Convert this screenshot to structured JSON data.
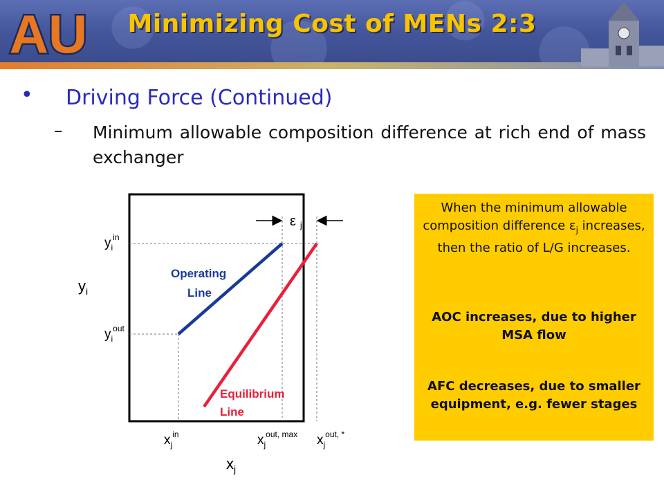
{
  "slide": {
    "title": "Minimizing Cost of MENs 2:3",
    "logo_text": "AU",
    "bullet": "•",
    "heading": "Driving Force (Continued)",
    "dash": "–",
    "subpoint": "Minimum allowable composition difference at rich end of mass exchanger"
  },
  "callout": {
    "p1_a": "When the minimum allowable composition difference ε",
    "p1_sub": "j",
    "p1_b": " increases, then the ratio of L/G increases.",
    "p2": "AOC increases, due to higher MSA flow",
    "p3": "AFC decreases, due to smaller equipment, e.g. fewer stages"
  },
  "diagram": {
    "epsilon": "ε",
    "epsilon_sub": "j",
    "operating_line_1": "Operating",
    "operating_line_2": "Line",
    "equilibrium_line_1": "Equilibrium",
    "equilibrium_line_2": "Line",
    "y_axis": "y",
    "y_axis_sub": "i",
    "x_axis": "x",
    "x_axis_sub": "j",
    "yin": "y",
    "yin_sub": "i",
    "yin_sup": "in",
    "yout": "y",
    "yout_sub": "i",
    "yout_sup": "out",
    "xin": "x",
    "xin_sub": "j",
    "xin_sup": "in",
    "xmax": "x",
    "xmax_sub": "j",
    "xmax_sup": "out, max",
    "xstar": "x",
    "xstar_sub": "j",
    "xstar_sup": "out, *"
  },
  "colors": {
    "title": "#f7c400",
    "heading": "#2b2bb8",
    "callout_bg": "#ffcc00",
    "operating_line": "#1a3a9a",
    "equilibrium_line": "#e8203a"
  }
}
